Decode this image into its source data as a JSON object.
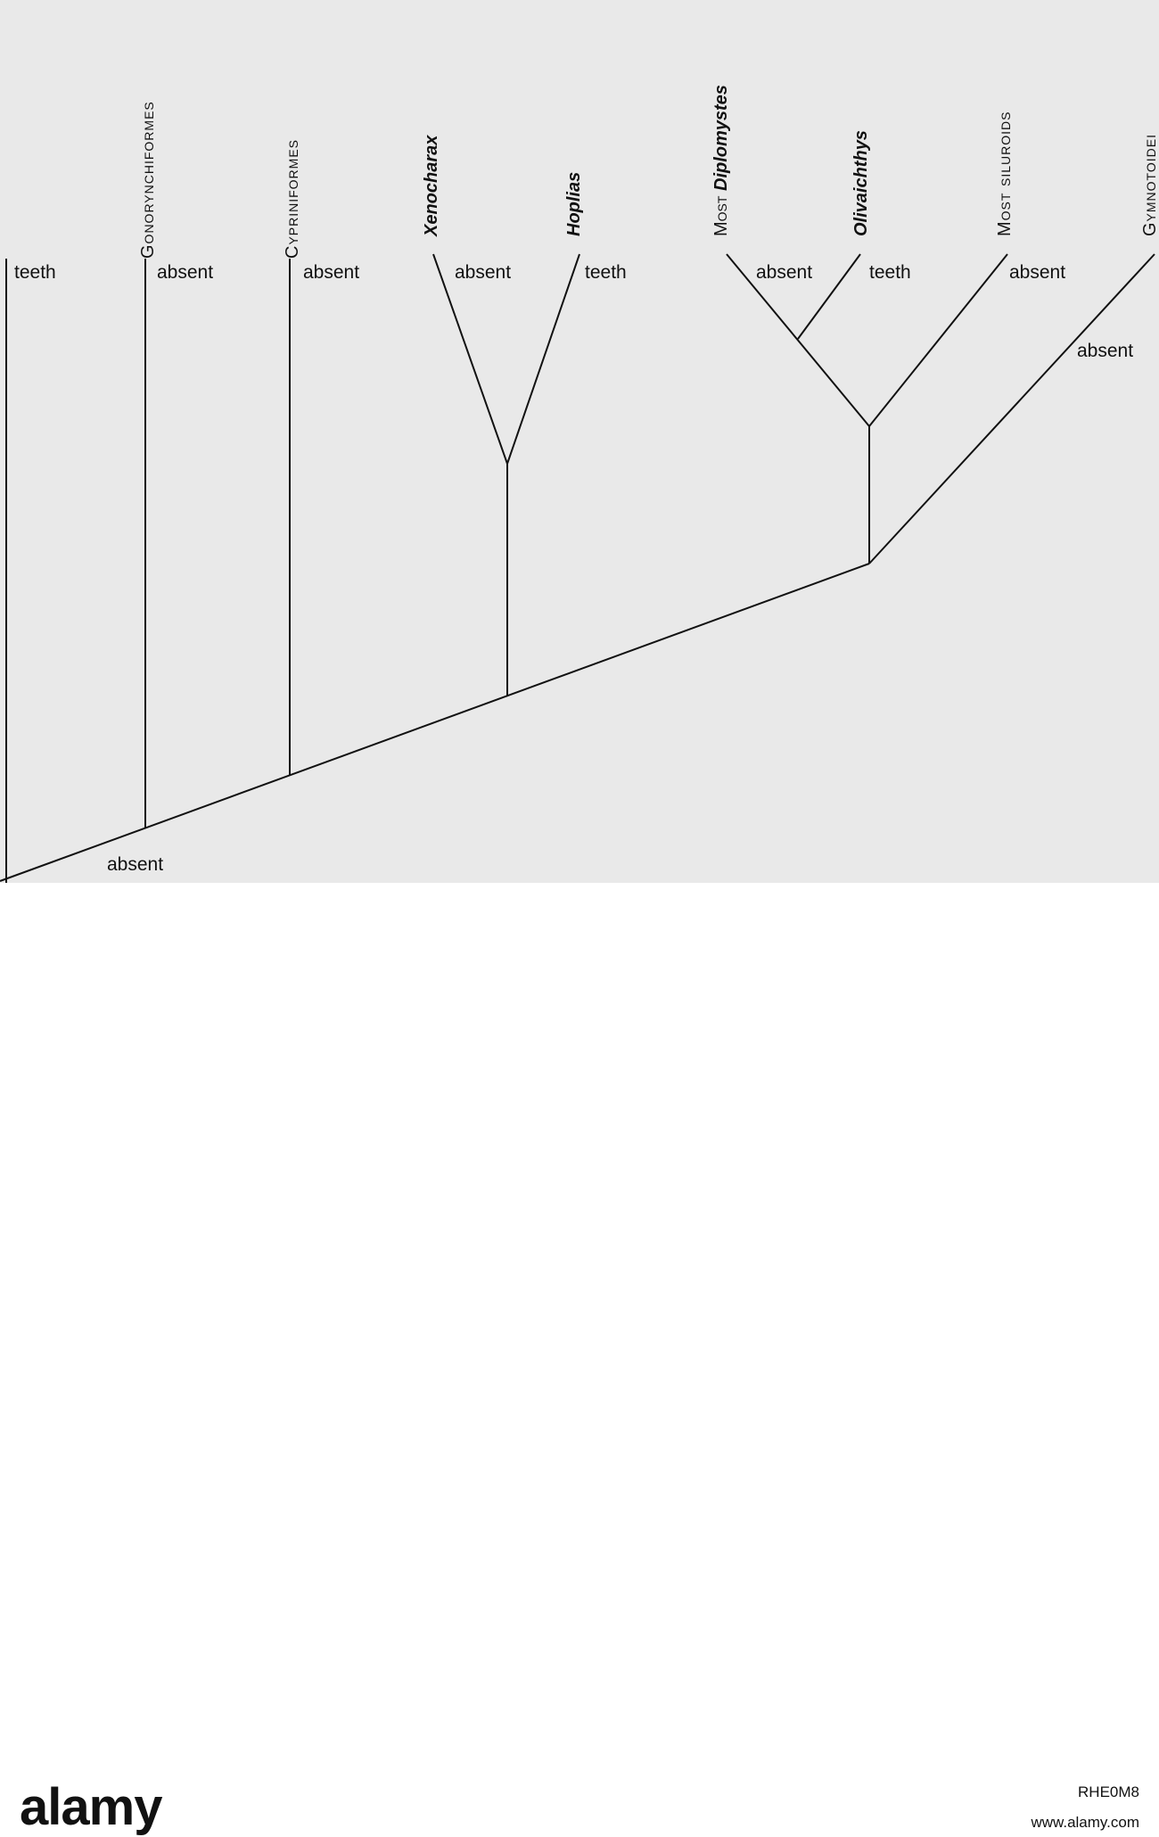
{
  "taxa": [
    {
      "label": "Gonorynchiformes",
      "style": "caps"
    },
    {
      "label": "Cypriniformes",
      "style": "caps"
    },
    {
      "label": "Xenocharax",
      "style": "italic"
    },
    {
      "label": "Hoplias",
      "style": "italic"
    },
    {
      "label": "Most Diplomystes",
      "style": "mixed"
    },
    {
      "label": "Olivaichthys",
      "style": "italic"
    },
    {
      "label": "Most siluroids",
      "style": "caps"
    },
    {
      "label": "Gymnotoidei",
      "style": "caps"
    }
  ],
  "diplomystes": {
    "prefix": "Most ",
    "genus": "Diplomystes"
  },
  "states": {
    "outgroup": "teeth",
    "gonorynchiformes": "absent",
    "cypriniformes": "absent",
    "xenocharax": "absent",
    "hoplias": "teeth",
    "diplomystes": "absent",
    "olivaichthys": "teeth",
    "siluroids": "absent",
    "gymnotoidei": "absent",
    "root": "absent"
  },
  "watermark": {
    "logo": "alamy",
    "image_id": "RHE0M8",
    "site": "www.alamy.com"
  }
}
